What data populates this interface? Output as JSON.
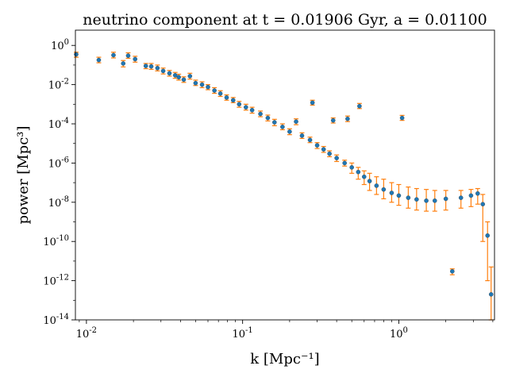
{
  "chart_data": {
    "type": "scatter",
    "title": "neutrino component at t = 0.01906 Gyr, a = 0.01100",
    "xlabel": "k [Mpc⁻¹]",
    "ylabel": "power [Mpc³]",
    "xscale": "log",
    "yscale": "log",
    "xlim": [
      0.0085,
      4.1
    ],
    "ylim": [
      1e-14,
      6
    ],
    "xticks": [
      {
        "value": 0.01,
        "base": "10",
        "exp": "-2"
      },
      {
        "value": 0.1,
        "base": "10",
        "exp": "-1"
      },
      {
        "value": 1,
        "base": "10",
        "exp": "0"
      }
    ],
    "yticks": [
      {
        "value": 1,
        "base": "10",
        "exp": "0"
      },
      {
        "value": 0.01,
        "base": "10",
        "exp": "-2"
      },
      {
        "value": 0.0001,
        "base": "10",
        "exp": "-4"
      },
      {
        "value": 1e-06,
        "base": "10",
        "exp": "-6"
      },
      {
        "value": 1e-08,
        "base": "10",
        "exp": "-8"
      },
      {
        "value": 1e-10,
        "base": "10",
        "exp": "-10"
      },
      {
        "value": 1e-12,
        "base": "10",
        "exp": "-12"
      },
      {
        "value": 1e-14,
        "base": "10",
        "exp": "-14"
      }
    ],
    "grid": false,
    "legend": "none",
    "colors": {
      "points": "#1f77b4",
      "errorbars": "#ff7f0e",
      "axes": "#000000"
    },
    "series": [
      {
        "name": "",
        "description": "power spectrum with error bars",
        "points": [
          {
            "k": 0.0086,
            "p": 0.35,
            "err_lo": 0.25,
            "err_hi": 0.45
          },
          {
            "k": 0.012,
            "p": 0.18,
            "err_lo": 0.13,
            "err_hi": 0.25
          },
          {
            "k": 0.0149,
            "p": 0.32,
            "err_lo": 0.23,
            "err_hi": 0.45
          },
          {
            "k": 0.0172,
            "p": 0.12,
            "err_lo": 0.08,
            "err_hi": 0.17
          },
          {
            "k": 0.0185,
            "p": 0.3,
            "err_lo": 0.22,
            "err_hi": 0.42
          },
          {
            "k": 0.0205,
            "p": 0.2,
            "err_lo": 0.14,
            "err_hi": 0.28
          },
          {
            "k": 0.024,
            "p": 0.09,
            "err_lo": 0.065,
            "err_hi": 0.12
          },
          {
            "k": 0.026,
            "p": 0.085,
            "err_lo": 0.06,
            "err_hi": 0.12
          },
          {
            "k": 0.0285,
            "p": 0.07,
            "err_lo": 0.05,
            "err_hi": 0.1
          },
          {
            "k": 0.031,
            "p": 0.05,
            "err_lo": 0.035,
            "err_hi": 0.07
          },
          {
            "k": 0.034,
            "p": 0.038,
            "err_lo": 0.027,
            "err_hi": 0.053
          },
          {
            "k": 0.037,
            "p": 0.03,
            "err_lo": 0.021,
            "err_hi": 0.042
          },
          {
            "k": 0.039,
            "p": 0.024,
            "err_lo": 0.017,
            "err_hi": 0.034
          },
          {
            "k": 0.042,
            "p": 0.018,
            "err_lo": 0.013,
            "err_hi": 0.025
          },
          {
            "k": 0.046,
            "p": 0.027,
            "err_lo": 0.019,
            "err_hi": 0.038
          },
          {
            "k": 0.05,
            "p": 0.012,
            "err_lo": 0.009,
            "err_hi": 0.017
          },
          {
            "k": 0.055,
            "p": 0.01,
            "err_lo": 0.007,
            "err_hi": 0.014
          },
          {
            "k": 0.06,
            "p": 0.0075,
            "err_lo": 0.0055,
            "err_hi": 0.01
          },
          {
            "k": 0.066,
            "p": 0.005,
            "err_lo": 0.0036,
            "err_hi": 0.007
          },
          {
            "k": 0.072,
            "p": 0.0035,
            "err_lo": 0.0025,
            "err_hi": 0.0049
          },
          {
            "k": 0.079,
            "p": 0.0022,
            "err_lo": 0.0016,
            "err_hi": 0.003
          },
          {
            "k": 0.087,
            "p": 0.0016,
            "err_lo": 0.0012,
            "err_hi": 0.0022
          },
          {
            "k": 0.095,
            "p": 0.001,
            "err_lo": 0.0007,
            "err_hi": 0.0014
          },
          {
            "k": 0.105,
            "p": 0.0007,
            "err_lo": 0.0005,
            "err_hi": 0.001
          },
          {
            "k": 0.115,
            "p": 0.0005,
            "err_lo": 0.00035,
            "err_hi": 0.0007
          },
          {
            "k": 0.13,
            "p": 0.00032,
            "err_lo": 0.00023,
            "err_hi": 0.00045
          },
          {
            "k": 0.145,
            "p": 0.0002,
            "err_lo": 0.00014,
            "err_hi": 0.00028
          },
          {
            "k": 0.16,
            "p": 0.00012,
            "err_lo": 8e-05,
            "err_hi": 0.00017
          },
          {
            "k": 0.18,
            "p": 7e-05,
            "err_lo": 5e-05,
            "err_hi": 0.0001
          },
          {
            "k": 0.2,
            "p": 4e-05,
            "err_lo": 2.8e-05,
            "err_hi": 5.6e-05
          },
          {
            "k": 0.22,
            "p": 0.00013,
            "err_lo": 9e-05,
            "err_hi": 0.00018
          },
          {
            "k": 0.24,
            "p": 2.5e-05,
            "err_lo": 1.8e-05,
            "err_hi": 3.5e-05
          },
          {
            "k": 0.27,
            "p": 1.5e-05,
            "err_lo": 1.1e-05,
            "err_hi": 2.1e-05
          },
          {
            "k": 0.28,
            "p": 0.0012,
            "err_lo": 0.0009,
            "err_hi": 0.0016
          },
          {
            "k": 0.3,
            "p": 8e-06,
            "err_lo": 5.5e-06,
            "err_hi": 1.1e-05
          },
          {
            "k": 0.33,
            "p": 5e-06,
            "err_lo": 3.5e-06,
            "err_hi": 7e-06
          },
          {
            "k": 0.36,
            "p": 3e-06,
            "err_lo": 2.1e-06,
            "err_hi": 4.2e-06
          },
          {
            "k": 0.38,
            "p": 0.00015,
            "err_lo": 0.00011,
            "err_hi": 0.0002
          },
          {
            "k": 0.4,
            "p": 1.8e-06,
            "err_lo": 1.2e-06,
            "err_hi": 2.6e-06
          },
          {
            "k": 0.45,
            "p": 1e-06,
            "err_lo": 7e-07,
            "err_hi": 1.4e-06
          },
          {
            "k": 0.47,
            "p": 0.00018,
            "err_lo": 0.00013,
            "err_hi": 0.00025
          },
          {
            "k": 0.5,
            "p": 6e-07,
            "err_lo": 3e-07,
            "err_hi": 1e-06
          },
          {
            "k": 0.55,
            "p": 3.5e-07,
            "err_lo": 1.5e-07,
            "err_hi": 6e-07
          },
          {
            "k": 0.56,
            "p": 0.0008,
            "err_lo": 0.0006,
            "err_hi": 0.0011
          },
          {
            "k": 0.6,
            "p": 2e-07,
            "err_lo": 8e-08,
            "err_hi": 4e-07
          },
          {
            "k": 0.65,
            "p": 1.2e-07,
            "err_lo": 4e-08,
            "err_hi": 3e-07
          },
          {
            "k": 0.72,
            "p": 7e-08,
            "err_lo": 2.5e-08,
            "err_hi": 2e-07
          },
          {
            "k": 0.8,
            "p": 4.5e-08,
            "err_lo": 1.5e-08,
            "err_hi": 1.5e-07
          },
          {
            "k": 0.9,
            "p": 3e-08,
            "err_lo": 1e-08,
            "err_hi": 1e-07
          },
          {
            "k": 1.0,
            "p": 2.2e-08,
            "err_lo": 7e-09,
            "err_hi": 8e-08
          },
          {
            "k": 1.05,
            "p": 0.0002,
            "err_lo": 0.00015,
            "err_hi": 0.00027
          },
          {
            "k": 1.15,
            "p": 1.7e-08,
            "err_lo": 5e-09,
            "err_hi": 6e-08
          },
          {
            "k": 1.3,
            "p": 1.4e-08,
            "err_lo": 4e-09,
            "err_hi": 5e-08
          },
          {
            "k": 1.5,
            "p": 1.2e-08,
            "err_lo": 3.5e-09,
            "err_hi": 4.5e-08
          },
          {
            "k": 1.7,
            "p": 1.2e-08,
            "err_lo": 3.5e-09,
            "err_hi": 4e-08
          },
          {
            "k": 2.0,
            "p": 1.5e-08,
            "err_lo": 4e-09,
            "err_hi": 4e-08
          },
          {
            "k": 2.2,
            "p": 3e-12,
            "err_lo": 2e-12,
            "err_hi": 4e-12
          },
          {
            "k": 2.5,
            "p": 1.7e-08,
            "err_lo": 5e-09,
            "err_hi": 4e-08
          },
          {
            "k": 2.9,
            "p": 2.2e-08,
            "err_lo": 6e-09,
            "err_hi": 4.5e-08
          },
          {
            "k": 3.2,
            "p": 2.8e-08,
            "err_lo": 8e-09,
            "err_hi": 5e-08
          },
          {
            "k": 3.45,
            "p": 8e-09,
            "err_lo": 1e-10,
            "err_hi": 2.5e-08
          },
          {
            "k": 3.7,
            "p": 2e-10,
            "err_lo": 1e-12,
            "err_hi": 1e-09
          },
          {
            "k": 3.9,
            "p": 2e-13,
            "err_lo": 1e-14,
            "err_hi": 5e-12
          }
        ]
      }
    ]
  }
}
